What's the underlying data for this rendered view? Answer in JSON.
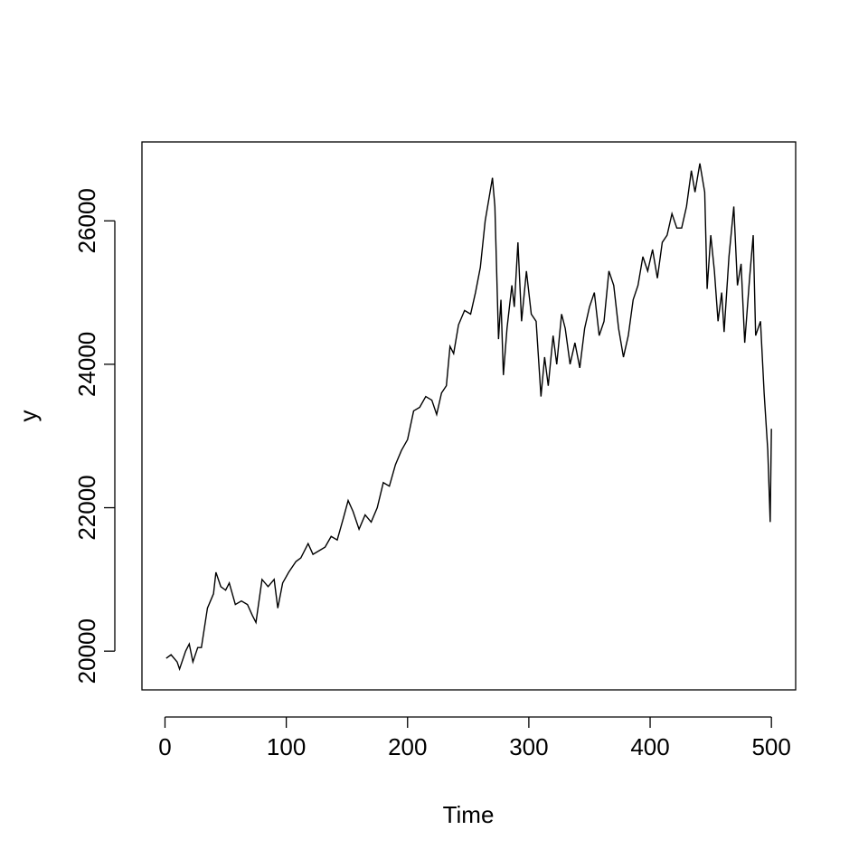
{
  "chart_data": {
    "type": "line",
    "xlabel": "Time",
    "ylabel": "y",
    "xlim": [
      -19,
      520
    ],
    "ylim": [
      19460,
      27100
    ],
    "xticks": [
      0,
      100,
      200,
      300,
      400,
      500
    ],
    "yticks": [
      20000,
      22000,
      24000,
      26000
    ],
    "series": [
      {
        "name": "y",
        "color": "#000000",
        "x": [
          1,
          5,
          10,
          12,
          17,
          20,
          23,
          27,
          30,
          35,
          40,
          42,
          46,
          50,
          53,
          58,
          63,
          68,
          72,
          75,
          80,
          85,
          90,
          93,
          97,
          102,
          108,
          112,
          118,
          122,
          127,
          132,
          137,
          142,
          147,
          151,
          155,
          160,
          165,
          170,
          175,
          180,
          185,
          190,
          195,
          200,
          205,
          210,
          215,
          220,
          224,
          228,
          232,
          235,
          238,
          242,
          247,
          252,
          256,
          260,
          264,
          267,
          270,
          272,
          275,
          277,
          279,
          282,
          286,
          288,
          291,
          294,
          298,
          302,
          306,
          310,
          313,
          316,
          320,
          323,
          327,
          330,
          334,
          338,
          342,
          346,
          350,
          354,
          358,
          362,
          366,
          370,
          374,
          378,
          382,
          386,
          390,
          394,
          398,
          402,
          406,
          410,
          414,
          418,
          422,
          426,
          430,
          434,
          437,
          441,
          445,
          447,
          450,
          453,
          456,
          459,
          461,
          465,
          469,
          472,
          475,
          478,
          482,
          485,
          487,
          491,
          494,
          497,
          499,
          500
        ],
        "values": [
          19900,
          19950,
          19850,
          19750,
          20000,
          20100,
          19850,
          20050,
          20050,
          20600,
          20800,
          21100,
          20900,
          20850,
          20950,
          20650,
          20700,
          20650,
          20500,
          20400,
          21000,
          20900,
          21000,
          20600,
          20950,
          21100,
          21250,
          21300,
          21500,
          21350,
          21400,
          21450,
          21600,
          21550,
          21850,
          22100,
          21950,
          21700,
          21900,
          21800,
          22000,
          22350,
          22300,
          22600,
          22800,
          22950,
          23350,
          23400,
          23550,
          23500,
          23300,
          23600,
          23700,
          24250,
          24150,
          24550,
          24750,
          24700,
          25000,
          25350,
          26000,
          26300,
          26600,
          26200,
          24350,
          24900,
          23850,
          24500,
          25100,
          24800,
          25700,
          24600,
          25300,
          24700,
          24600,
          23550,
          24100,
          23700,
          24400,
          24000,
          24700,
          24500,
          24000,
          24300,
          23950,
          24500,
          24800,
          25000,
          24400,
          24600,
          25300,
          25100,
          24500,
          24100,
          24400,
          24900,
          25100,
          25500,
          25300,
          25600,
          25200,
          25700,
          25800,
          26100,
          25900,
          25900,
          26200,
          26700,
          26400,
          26800,
          26400,
          25050,
          25800,
          25300,
          24600,
          25000,
          24450,
          25500,
          26200,
          25100,
          25400,
          24300,
          25200,
          25800,
          24400,
          24600,
          23600,
          22800,
          21800,
          23100
        ]
      }
    ]
  }
}
